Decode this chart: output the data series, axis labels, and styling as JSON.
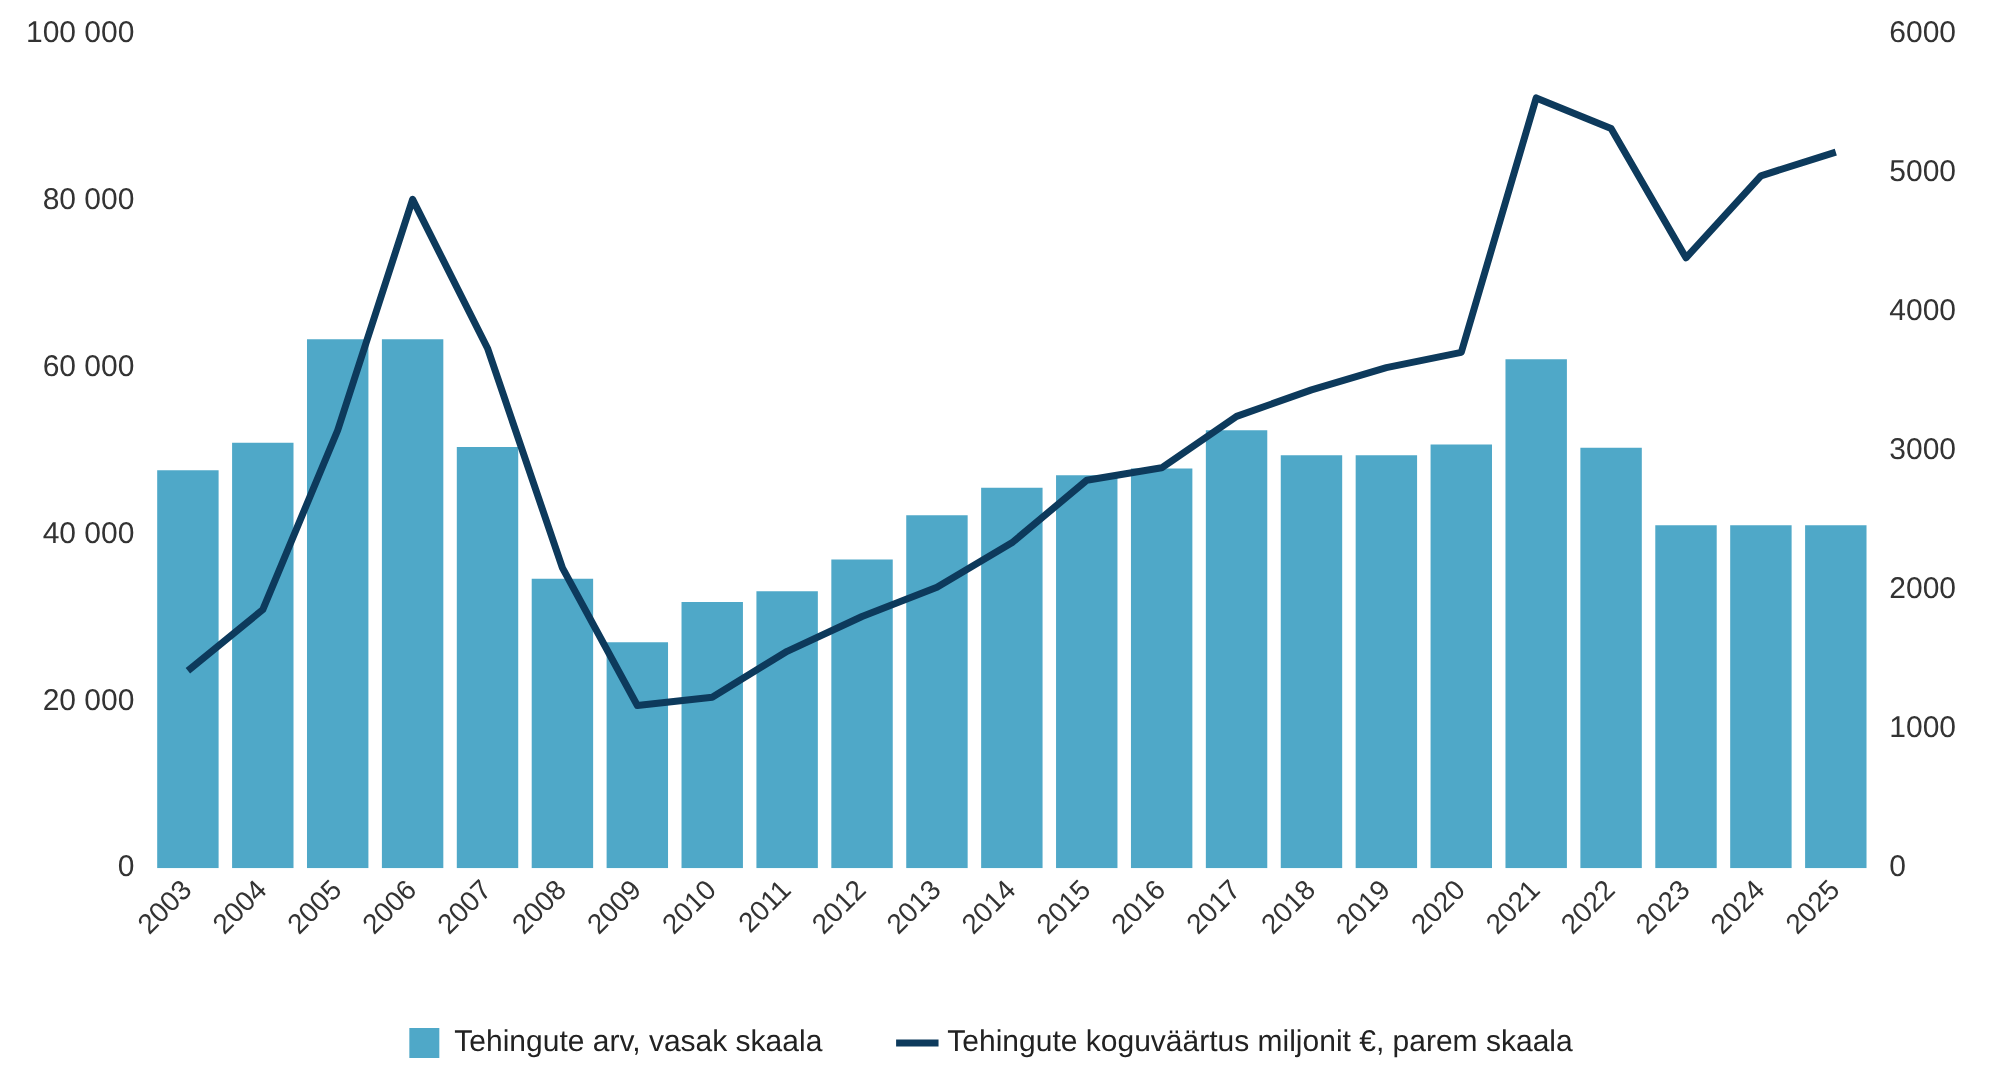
{
  "chart_data": {
    "type": "bar",
    "categories": [
      "2003",
      "2004",
      "2005",
      "2006",
      "2007",
      "2008",
      "2009",
      "2010",
      "2011",
      "2012",
      "2013",
      "2014",
      "2015",
      "2016",
      "2017",
      "2018",
      "2019",
      "2020",
      "2021",
      "2022",
      "2023",
      "2024",
      "2025"
    ],
    "series": [
      {
        "name": "Tehingute arv, vasak skaala",
        "color": "#4fa8c8",
        "values": [
          47700,
          51000,
          63400,
          63400,
          50500,
          34700,
          27100,
          31900,
          33200,
          37000,
          42300,
          45600,
          47100,
          47900,
          52500,
          49500,
          49500,
          50800,
          61000,
          50400,
          41100,
          41100,
          41100
        ]
      },
      {
        "name": "Tehingute koguväärtus miljonit €, parem skaala",
        "type": "line",
        "axis": "y2",
        "color": "#0d3a5c",
        "values": [
          1420,
          1860,
          3150,
          4810,
          3740,
          2160,
          1170,
          1230,
          1560,
          1810,
          2020,
          2340,
          2790,
          2880,
          3250,
          3440,
          3600,
          3710,
          5540,
          5320,
          4390,
          4980,
          5150
        ]
      }
    ],
    "ylim": [
      0,
      100000
    ],
    "yticks": [
      {
        "value": 0,
        "label": "0"
      },
      {
        "value": 20000,
        "label": "20 000"
      },
      {
        "value": 40000,
        "label": "40 000"
      },
      {
        "value": 60000,
        "label": "60 000"
      },
      {
        "value": 80000,
        "label": "80 000"
      },
      {
        "value": 100000,
        "label": "100 000"
      }
    ],
    "y2lim": [
      0,
      6000
    ],
    "y2ticks": [
      0,
      1000,
      2000,
      3000,
      4000,
      5000,
      6000
    ],
    "grid": false,
    "legend": "bottom",
    "marker": "none",
    "line_style": "solid"
  }
}
